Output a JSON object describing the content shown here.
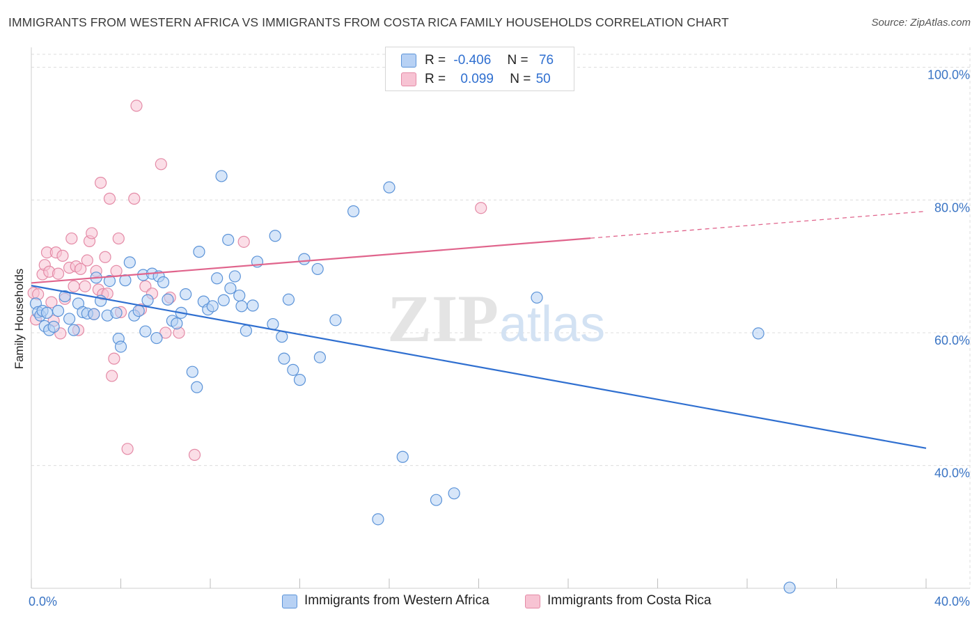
{
  "chart_data": {
    "type": "scatter",
    "title": "IMMIGRANTS FROM WESTERN AFRICA VS IMMIGRANTS FROM COSTA RICA FAMILY HOUSEHOLDS CORRELATION CHART",
    "source": "Source: ZipAtlas.com",
    "ylabel": "Family Households",
    "x_tick_labels": [
      "0.0%",
      "40.0%"
    ],
    "y_tick_labels": [
      "100.0%",
      "80.0%",
      "60.0%",
      "40.0%"
    ],
    "y_ticks": [
      100,
      80,
      60,
      40
    ],
    "xlim": [
      0,
      40
    ],
    "ylim": [
      21.5,
      103
    ],
    "grid": true,
    "legend_placement": "top-center",
    "colors": {
      "blue_fill": "#b7d1f4",
      "blue_stroke": "#5b93d8",
      "blue_line": "#2f6fd0",
      "pink_fill": "#f7c3d3",
      "pink_stroke": "#e48aa6",
      "pink_line": "#e0648c",
      "grid": "#dcdcdc",
      "axis_label": "#3a74c4"
    },
    "watermark": {
      "zip": "ZIP",
      "atlas": "atlas"
    },
    "legend": {
      "rows": [
        {
          "r_label": "R =",
          "r_value": "-0.406",
          "n_label": "N =",
          "n_value": "76"
        },
        {
          "r_label": "R =",
          "r_value": "0.099",
          "n_label": "N =",
          "n_value": "50"
        }
      ]
    },
    "series": [
      {
        "name": "Immigrants from Western Africa",
        "trend": {
          "x": [
            0,
            40
          ],
          "y": [
            67.1,
            42.6
          ],
          "dashed_from": null
        },
        "points": [
          [
            0.2,
            64.4
          ],
          [
            0.3,
            63.1
          ],
          [
            0.4,
            62.6
          ],
          [
            0.5,
            63.3
          ],
          [
            0.6,
            61.0
          ],
          [
            0.7,
            63.0
          ],
          [
            0.8,
            60.4
          ],
          [
            1.0,
            60.9
          ],
          [
            1.2,
            63.3
          ],
          [
            1.5,
            65.5
          ],
          [
            1.7,
            62.1
          ],
          [
            1.9,
            60.4
          ],
          [
            2.1,
            64.4
          ],
          [
            2.3,
            63.1
          ],
          [
            2.5,
            62.9
          ],
          [
            2.8,
            62.8
          ],
          [
            2.9,
            68.3
          ],
          [
            3.1,
            64.8
          ],
          [
            3.4,
            62.6
          ],
          [
            3.5,
            67.8
          ],
          [
            3.8,
            63.0
          ],
          [
            3.9,
            59.1
          ],
          [
            4.0,
            57.9
          ],
          [
            4.2,
            67.9
          ],
          [
            4.4,
            70.6
          ],
          [
            4.6,
            62.6
          ],
          [
            4.8,
            63.3
          ],
          [
            5.0,
            68.7
          ],
          [
            5.1,
            60.2
          ],
          [
            5.2,
            64.9
          ],
          [
            5.4,
            68.9
          ],
          [
            5.6,
            59.2
          ],
          [
            5.7,
            68.5
          ],
          [
            5.9,
            67.6
          ],
          [
            6.1,
            65.0
          ],
          [
            6.3,
            61.8
          ],
          [
            6.5,
            61.4
          ],
          [
            6.7,
            63.0
          ],
          [
            6.9,
            65.8
          ],
          [
            7.2,
            54.1
          ],
          [
            7.4,
            51.8
          ],
          [
            7.5,
            72.2
          ],
          [
            7.7,
            64.7
          ],
          [
            7.9,
            63.5
          ],
          [
            8.1,
            64.0
          ],
          [
            8.3,
            68.2
          ],
          [
            8.5,
            83.6
          ],
          [
            8.6,
            64.9
          ],
          [
            8.8,
            74.0
          ],
          [
            8.9,
            66.7
          ],
          [
            9.1,
            68.5
          ],
          [
            9.3,
            65.6
          ],
          [
            9.4,
            64.0
          ],
          [
            9.6,
            60.3
          ],
          [
            9.9,
            64.1
          ],
          [
            10.1,
            70.7
          ],
          [
            10.8,
            61.3
          ],
          [
            10.9,
            74.6
          ],
          [
            11.2,
            59.4
          ],
          [
            11.3,
            56.1
          ],
          [
            11.5,
            65.0
          ],
          [
            11.7,
            54.4
          ],
          [
            12.0,
            52.9
          ],
          [
            12.2,
            71.1
          ],
          [
            12.8,
            69.6
          ],
          [
            12.9,
            56.3
          ],
          [
            13.6,
            61.9
          ],
          [
            14.4,
            78.3
          ],
          [
            15.5,
            31.9
          ],
          [
            16.0,
            81.9
          ],
          [
            16.6,
            41.3
          ],
          [
            18.1,
            34.8
          ],
          [
            18.9,
            35.8
          ],
          [
            22.6,
            65.3
          ],
          [
            32.5,
            59.9
          ],
          [
            33.9,
            21.6
          ]
        ]
      },
      {
        "name": "Immigrants from Costa Rica",
        "trend": {
          "x": [
            0,
            40
          ],
          "y": [
            67.5,
            78.3
          ],
          "dashed_from": 25
        },
        "points": [
          [
            0.1,
            66.0
          ],
          [
            0.2,
            62.0
          ],
          [
            0.3,
            65.8
          ],
          [
            0.5,
            68.8
          ],
          [
            0.6,
            70.2
          ],
          [
            0.7,
            72.1
          ],
          [
            0.8,
            69.2
          ],
          [
            0.9,
            64.6
          ],
          [
            1.0,
            61.8
          ],
          [
            1.1,
            72.1
          ],
          [
            1.2,
            68.9
          ],
          [
            1.3,
            59.9
          ],
          [
            1.4,
            71.6
          ],
          [
            1.5,
            65.1
          ],
          [
            1.7,
            69.8
          ],
          [
            1.8,
            74.2
          ],
          [
            1.9,
            67.0
          ],
          [
            2.0,
            70.0
          ],
          [
            2.1,
            60.4
          ],
          [
            2.2,
            69.6
          ],
          [
            2.4,
            67.0
          ],
          [
            2.5,
            70.9
          ],
          [
            2.6,
            73.8
          ],
          [
            2.7,
            75.0
          ],
          [
            2.8,
            62.8
          ],
          [
            2.9,
            69.3
          ],
          [
            3.0,
            66.5
          ],
          [
            3.1,
            82.6
          ],
          [
            3.2,
            65.8
          ],
          [
            3.3,
            71.4
          ],
          [
            3.4,
            65.9
          ],
          [
            3.5,
            80.2
          ],
          [
            3.6,
            53.5
          ],
          [
            3.7,
            56.1
          ],
          [
            3.8,
            69.3
          ],
          [
            3.9,
            74.2
          ],
          [
            4.0,
            63.1
          ],
          [
            4.3,
            42.5
          ],
          [
            4.6,
            80.2
          ],
          [
            4.7,
            94.2
          ],
          [
            4.9,
            63.5
          ],
          [
            5.1,
            67.0
          ],
          [
            5.4,
            65.9
          ],
          [
            5.8,
            85.4
          ],
          [
            6.0,
            60.0
          ],
          [
            6.2,
            65.3
          ],
          [
            6.6,
            60.0
          ],
          [
            7.3,
            41.6
          ],
          [
            9.5,
            73.7
          ],
          [
            20.1,
            78.8
          ]
        ]
      }
    ]
  },
  "bottom_legend": [
    "Immigrants from Western Africa",
    "Immigrants from Costa Rica"
  ]
}
